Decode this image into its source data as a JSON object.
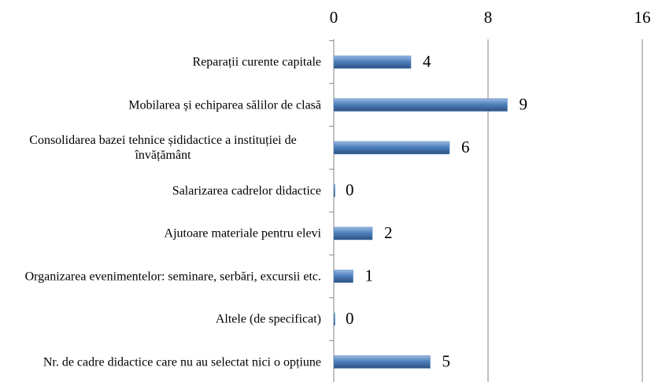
{
  "chart_data": {
    "type": "bar",
    "orientation": "horizontal",
    "categories": [
      "Reparații curente capitale",
      "Mobilarea și echiparea sălilor de clasă",
      "Consolidarea bazei tehnice șididactice a instituției de învățământ",
      "Salarizarea cadrelor didactice",
      "Ajutoare materiale pentru elevi",
      "Organizarea evenimentelor: seminare, serbări, excursii etc.",
      "Altele (de specificat)",
      "Nr. de cadre didactice care nu au selectat nici o opțiune"
    ],
    "values": [
      4,
      9,
      6,
      0,
      2,
      1,
      0,
      5
    ],
    "color": "#4f81bd",
    "xlim": [
      0,
      16
    ],
    "xticks": [
      0,
      8,
      16
    ],
    "grid": true
  }
}
